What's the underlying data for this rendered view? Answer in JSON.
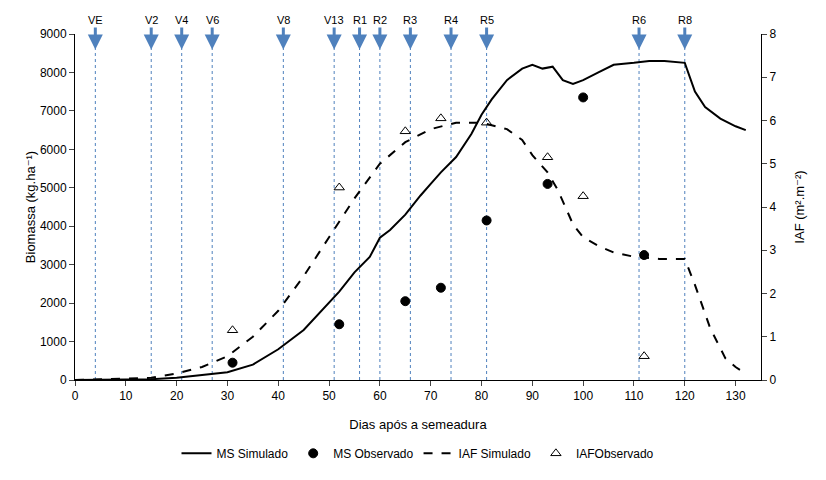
{
  "chart_data": {
    "type": "line",
    "x_label": "Dias após a semeadura",
    "y_label": "Biomassa (kg.ha⁻¹)",
    "y2_label": "IAF (m².m⁻²)",
    "xlim": [
      0,
      135
    ],
    "xticks": [
      0,
      10,
      20,
      30,
      40,
      50,
      60,
      70,
      80,
      90,
      100,
      110,
      120,
      130
    ],
    "ylim": [
      0,
      9000
    ],
    "yticks": [
      0,
      1000,
      2000,
      3000,
      4000,
      5000,
      6000,
      7000,
      8000,
      9000
    ],
    "y2lim": [
      0,
      8
    ],
    "y2ticks": [
      0,
      1,
      2,
      3,
      4,
      5,
      6,
      7,
      8
    ],
    "grid": false,
    "legend": "bottom",
    "stages": [
      {
        "label": "VE",
        "x": 4
      },
      {
        "label": "V2",
        "x": 15
      },
      {
        "label": "V4",
        "x": 21
      },
      {
        "label": "V6",
        "x": 27
      },
      {
        "label": "V8",
        "x": 41
      },
      {
        "label": "V13",
        "x": 51
      },
      {
        "label": "R1",
        "x": 56
      },
      {
        "label": "R2",
        "x": 60
      },
      {
        "label": "R3",
        "x": 66
      },
      {
        "label": "R4",
        "x": 74
      },
      {
        "label": "R5",
        "x": 81
      },
      {
        "label": "R6",
        "x": 111
      },
      {
        "label": "R8",
        "x": 120
      }
    ],
    "stage_color": "#4f81bd",
    "series": [
      {
        "name": "MS Simulado",
        "type": "line",
        "line_style": "solid",
        "color": "#000000",
        "x": [
          0,
          10,
          15,
          20,
          25,
          30,
          35,
          40,
          45,
          50,
          52,
          55,
          58,
          60,
          62,
          65,
          68,
          70,
          72,
          75,
          78,
          80,
          82,
          85,
          88,
          90,
          92,
          94,
          96,
          98,
          100,
          103,
          106,
          110,
          113,
          116,
          120,
          122,
          124,
          127,
          130,
          132
        ],
        "values": [
          0,
          5,
          20,
          60,
          130,
          200,
          400,
          800,
          1300,
          2000,
          2300,
          2800,
          3200,
          3700,
          3900,
          4300,
          4800,
          5100,
          5400,
          5800,
          6400,
          6900,
          7300,
          7800,
          8100,
          8200,
          8100,
          8150,
          7800,
          7700,
          7800,
          8000,
          8200,
          8250,
          8300,
          8300,
          8250,
          7500,
          7100,
          6800,
          6600,
          6500
        ]
      },
      {
        "name": "MS Observado",
        "type": "scatter",
        "marker": "circle",
        "color": "#000000",
        "x": [
          31,
          52,
          65,
          72,
          81,
          93,
          100,
          112
        ],
        "values": [
          450,
          1450,
          2050,
          2400,
          4150,
          5100,
          7350,
          3250
        ]
      },
      {
        "name": "IAF Simulado",
        "type": "line",
        "line_style": "dash",
        "color": "#000000",
        "axis": "y2",
        "x": [
          0,
          15,
          20,
          25,
          30,
          35,
          40,
          45,
          50,
          55,
          60,
          65,
          70,
          75,
          80,
          85,
          88,
          90,
          93,
          95,
          98,
          100,
          103,
          106,
          110,
          115,
          120,
          122,
          125,
          128,
          130,
          132
        ],
        "values": [
          0,
          0.05,
          0.15,
          0.3,
          0.55,
          1.0,
          1.6,
          2.4,
          3.3,
          4.2,
          5.0,
          5.5,
          5.8,
          5.95,
          5.95,
          5.8,
          5.55,
          5.2,
          4.8,
          4.4,
          3.6,
          3.3,
          3.1,
          2.95,
          2.85,
          2.8,
          2.8,
          2.2,
          1.2,
          0.5,
          0.3,
          0.15
        ]
      },
      {
        "name": "IAFObservado",
        "type": "scatter",
        "marker": "triangle-open",
        "color": "#000000",
        "axis": "y2",
        "x": [
          31,
          52,
          65,
          72,
          81,
          93,
          100,
          112
        ],
        "values": [
          1.15,
          4.45,
          5.75,
          6.05,
          5.95,
          5.15,
          4.25,
          0.55
        ]
      }
    ]
  }
}
